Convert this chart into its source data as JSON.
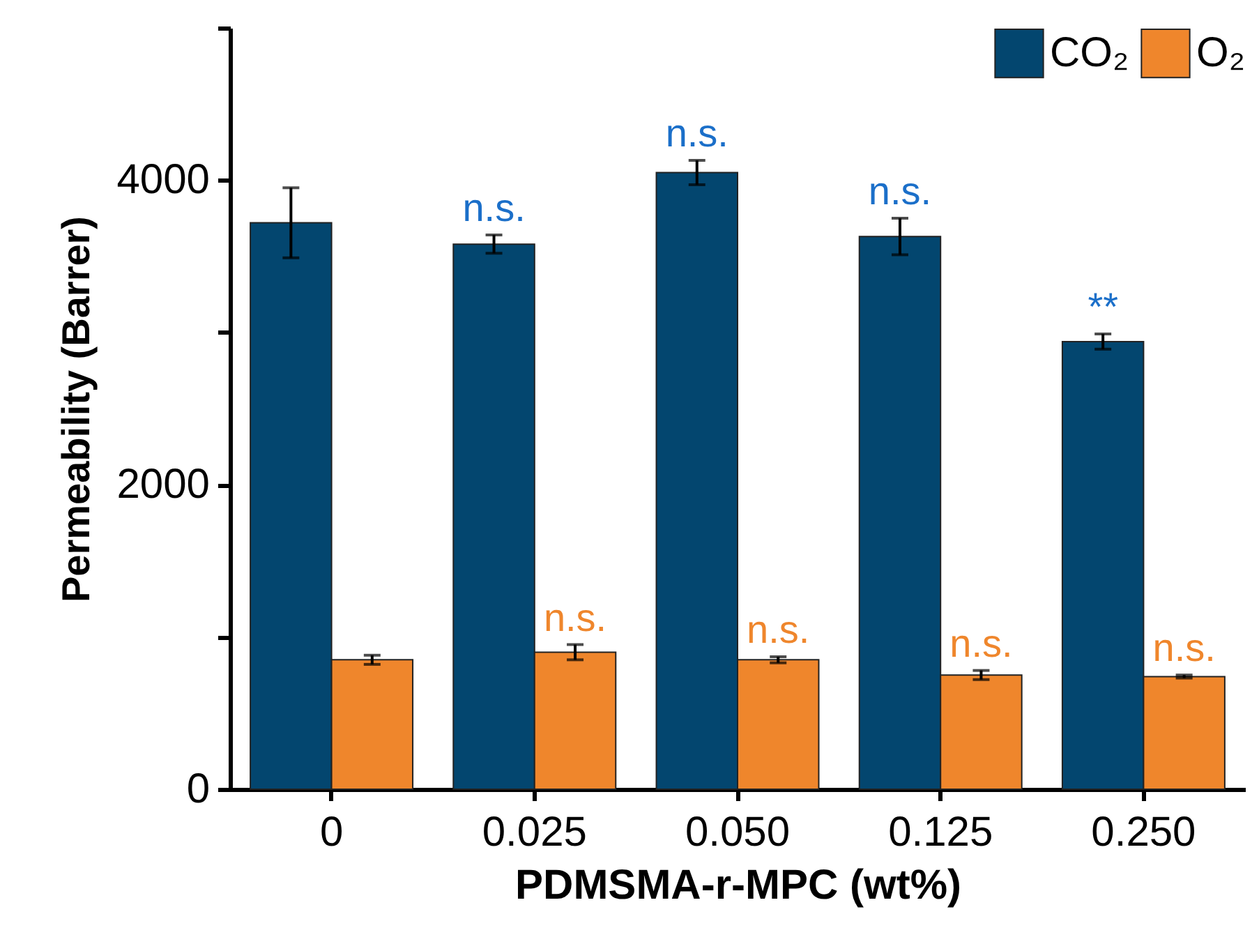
{
  "chart_data": {
    "type": "bar",
    "xlabel": "PDMSMA-r-MPC (wt%)",
    "ylabel": "Permeability (Barrer)",
    "categories": [
      "0",
      "0.025",
      "0.050",
      "0.125",
      "0.250"
    ],
    "series": [
      {
        "name": "CO₂",
        "color": "#03466f",
        "values": [
          3720,
          3580,
          4050,
          3630,
          2940
        ],
        "errors": [
          230,
          60,
          80,
          120,
          50
        ]
      },
      {
        "name": "O₂",
        "color": "#ef862c",
        "values": [
          850,
          900,
          850,
          750,
          740
        ],
        "errors": [
          30,
          50,
          20,
          30,
          10
        ]
      }
    ],
    "ylim": [
      0,
      5000
    ],
    "yticks": [
      0,
      {
        "value": 1000,
        "label": null
      },
      2000,
      {
        "value": 3000,
        "label": null
      },
      4000,
      {
        "value": 5000,
        "label": null
      }
    ],
    "legend": "top right",
    "annotations": [
      {
        "text": "n.s.",
        "x": "0.025",
        "y": 3580
      },
      {
        "text": "n.s.",
        "x": "0.050",
        "y": 4050
      },
      {
        "text": "n.s.",
        "x": "0.125",
        "y": 3630
      },
      {
        "text": "**",
        "x": "0.250",
        "y": 2940
      },
      {
        "text": "n.s.",
        "x": "0.025",
        "y": 900
      },
      {
        "text": "n.s.",
        "x": "0.050",
        "y": 850
      },
      {
        "text": "n.s.",
        "x": "0.125",
        "y": 750
      },
      {
        "text": "n.s.",
        "x": "0.250",
        "y": 740
      }
    ]
  }
}
